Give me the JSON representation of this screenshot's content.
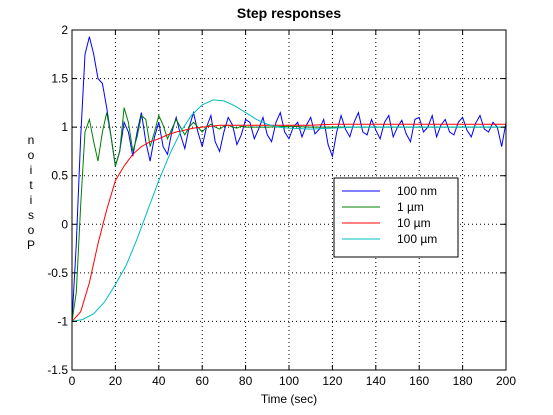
{
  "chart_data": {
    "type": "line",
    "title": "Step responses",
    "xlabel": "Time (sec)",
    "ylabel": "Position",
    "xlim": [
      0,
      200
    ],
    "ylim": [
      -1.5,
      2
    ],
    "grid": true,
    "legend_placement": "center-right",
    "x_ticks": [
      "0",
      "20",
      "40",
      "60",
      "80",
      "100",
      "120",
      "140",
      "160",
      "180",
      "200"
    ],
    "y_ticks": [
      "-1.5",
      "-1",
      "-0.5",
      "0",
      "0.5",
      "1",
      "1.5",
      "2"
    ],
    "series": [
      {
        "name": "100 nm",
        "color": "#0000ff",
        "x": [
          0,
          2,
          4,
          6,
          8,
          10,
          12,
          14,
          16,
          18,
          20,
          22,
          24,
          26,
          28,
          30,
          32,
          34,
          36,
          38,
          40,
          42,
          44,
          46,
          48,
          50,
          52,
          54,
          56,
          58,
          60,
          62,
          64,
          66,
          68,
          70,
          72,
          74,
          76,
          78,
          80,
          82,
          84,
          86,
          88,
          90,
          92,
          94,
          96,
          98,
          100,
          102,
          104,
          106,
          108,
          110,
          112,
          114,
          116,
          118,
          120,
          122,
          124,
          126,
          128,
          130,
          132,
          134,
          136,
          138,
          140,
          142,
          144,
          146,
          148,
          150,
          152,
          154,
          156,
          158,
          160,
          162,
          164,
          166,
          168,
          170,
          172,
          174,
          176,
          178,
          180,
          182,
          184,
          186,
          188,
          190,
          192,
          194,
          196,
          198,
          200
        ],
        "y": [
          -1.0,
          -0.2,
          0.9,
          1.75,
          1.93,
          1.75,
          1.5,
          1.45,
          1.2,
          0.9,
          0.6,
          0.75,
          1.05,
          0.95,
          0.7,
          0.95,
          1.15,
          0.85,
          0.65,
          0.9,
          1.05,
          0.8,
          0.72,
          0.95,
          1.1,
          0.92,
          0.78,
          1.0,
          1.15,
          0.95,
          0.8,
          1.0,
          1.12,
          0.85,
          0.75,
          0.95,
          1.1,
          1.02,
          0.82,
          0.92,
          1.08,
          1.05,
          0.88,
          0.98,
          1.1,
          0.92,
          0.85,
          1.05,
          1.15,
          0.95,
          0.88,
          1.0,
          1.05,
          0.9,
          1.02,
          1.1,
          0.93,
          0.98,
          1.08,
          0.82,
          0.7,
          0.95,
          1.12,
          0.98,
          0.9,
          1.05,
          1.15,
          0.95,
          0.92,
          1.08,
          0.97,
          0.88,
          1.05,
          1.12,
          0.9,
          1.0,
          1.07,
          0.93,
          0.85,
          1.08,
          1.1,
          0.95,
          1.0,
          1.12,
          0.9,
          1.02,
          1.08,
          0.95,
          0.92,
          1.05,
          1.1,
          0.97,
          0.9,
          1.04,
          1.12,
          0.98,
          0.95,
          1.05,
          1.0,
          0.8,
          1.05
        ]
      },
      {
        "name": "1 µm",
        "color": "#008000",
        "x": [
          0,
          2,
          4,
          6,
          8,
          10,
          12,
          14,
          16,
          18,
          20,
          22,
          24,
          26,
          28,
          30,
          32,
          34,
          36,
          38,
          40,
          42,
          44,
          46,
          48,
          50,
          52,
          54,
          56,
          58,
          60,
          62,
          64,
          66,
          68,
          70,
          72,
          74,
          76,
          78,
          80,
          90,
          100,
          110,
          120,
          140,
          160,
          180,
          200
        ],
        "y": [
          -1.0,
          -0.7,
          0.2,
          0.95,
          1.08,
          0.85,
          0.65,
          0.95,
          1.15,
          0.9,
          0.6,
          0.75,
          1.2,
          1.05,
          0.75,
          0.9,
          1.12,
          1.08,
          0.8,
          0.95,
          1.12,
          1.02,
          0.88,
          0.98,
          1.08,
          1.0,
          0.92,
          1.0,
          1.05,
          1.0,
          0.95,
          1.0,
          1.03,
          1.0,
          0.98,
          1.01,
          1.02,
          1.0,
          0.99,
          1.01,
          1.0,
          1.0,
          1.01,
          1.0,
          1.0,
          1.0,
          1.0,
          1.0,
          1.0
        ]
      },
      {
        "name": "10 µm",
        "color": "#ff0000",
        "x": [
          0,
          4,
          8,
          12,
          16,
          20,
          24,
          28,
          32,
          36,
          40,
          44,
          48,
          52,
          56,
          60,
          64,
          68,
          72,
          76,
          80,
          90,
          100,
          110,
          120,
          140,
          160,
          180,
          200
        ],
        "y": [
          -1.0,
          -0.9,
          -0.6,
          -0.2,
          0.15,
          0.45,
          0.6,
          0.72,
          0.8,
          0.85,
          0.88,
          0.92,
          0.95,
          0.97,
          0.99,
          1.0,
          1.01,
          1.02,
          1.02,
          1.02,
          1.02,
          1.02,
          1.02,
          1.02,
          1.03,
          1.03,
          1.03,
          1.03,
          1.03
        ]
      },
      {
        "name": "100 µm",
        "color": "#00bfbf",
        "x": [
          0,
          5,
          10,
          15,
          20,
          25,
          30,
          35,
          40,
          45,
          50,
          55,
          60,
          65,
          70,
          75,
          80,
          85,
          90,
          95,
          100,
          110,
          120,
          130,
          140,
          160,
          180,
          200
        ],
        "y": [
          -1.0,
          -0.98,
          -0.92,
          -0.8,
          -0.62,
          -0.42,
          -0.15,
          0.15,
          0.45,
          0.72,
          0.95,
          1.12,
          1.23,
          1.28,
          1.27,
          1.22,
          1.15,
          1.08,
          1.03,
          1.0,
          0.99,
          0.98,
          0.99,
          1.0,
          1.0,
          1.0,
          1.0,
          1.0
        ]
      }
    ]
  }
}
